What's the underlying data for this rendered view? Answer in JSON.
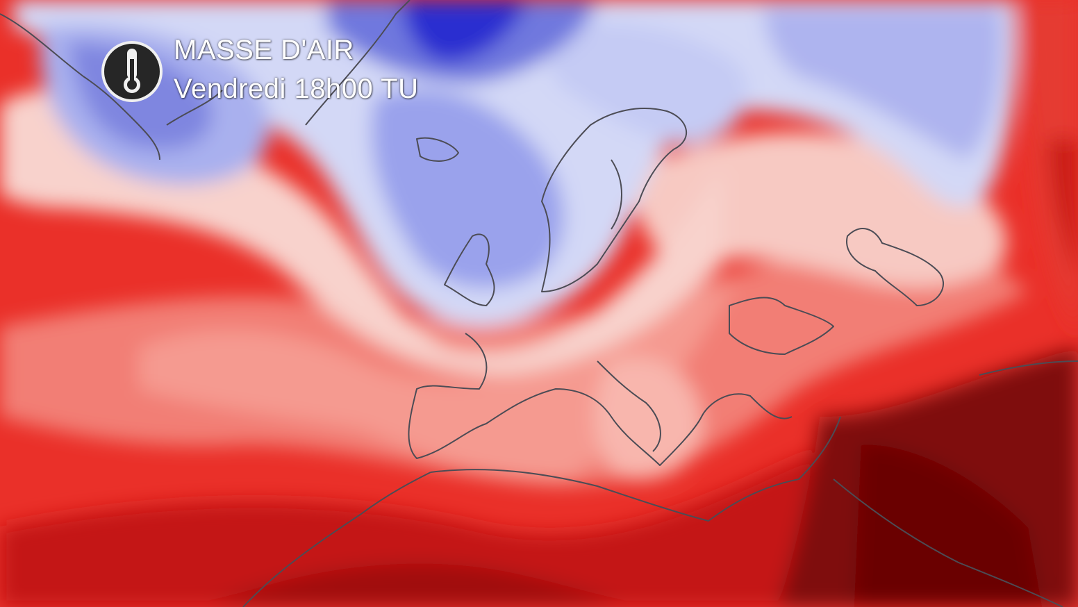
{
  "overlay": {
    "title": "MASSE D'AIR",
    "subtitle": "Vendredi 18h00 TU"
  }
}
